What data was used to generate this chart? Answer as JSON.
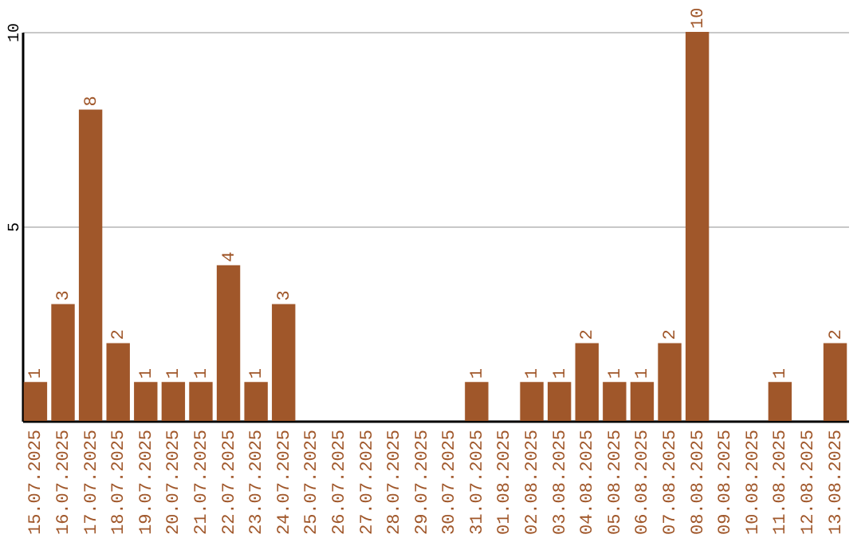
{
  "chart_data": {
    "type": "bar",
    "categories": [
      "15.07.2025",
      "16.07.2025",
      "17.07.2025",
      "18.07.2025",
      "19.07.2025",
      "20.07.2025",
      "21.07.2025",
      "22.07.2025",
      "23.07.2025",
      "24.07.2025",
      "25.07.2025",
      "26.07.2025",
      "27.07.2025",
      "28.07.2025",
      "29.07.2025",
      "30.07.2025",
      "31.07.2025",
      "01.08.2025",
      "02.08.2025",
      "03.08.2025",
      "04.08.2025",
      "05.08.2025",
      "06.08.2025",
      "07.08.2025",
      "08.08.2025",
      "09.08.2025",
      "10.08.2025",
      "11.08.2025",
      "12.08.2025",
      "13.08.2025"
    ],
    "values": [
      1,
      3,
      8,
      2,
      1,
      1,
      1,
      4,
      1,
      3,
      0,
      0,
      0,
      0,
      0,
      0,
      1,
      0,
      1,
      1,
      2,
      1,
      1,
      2,
      10,
      0,
      0,
      1,
      0,
      2
    ],
    "value_labels": [
      "1",
      "3",
      "8",
      "2",
      "1",
      "1",
      "1",
      "4",
      "1",
      "3",
      null,
      null,
      null,
      null,
      null,
      null,
      "1",
      null,
      "1",
      "1",
      "2",
      "1",
      "1",
      "2",
      "10",
      null,
      null,
      "1",
      null,
      "2"
    ],
    "color": "#a0572a",
    "ylim": [
      0,
      10
    ],
    "yticks": [
      5,
      10
    ],
    "grid": "y"
  }
}
